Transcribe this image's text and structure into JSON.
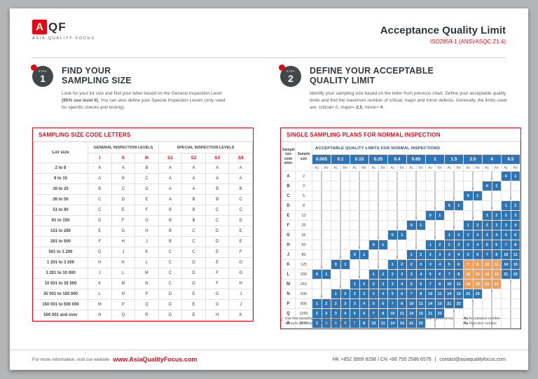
{
  "theme": {
    "accent_red": "#e30613",
    "accent_blue": "#2e75b6",
    "highlight_orange": "#f0a05a",
    "banner_blue": "#1f4e79"
  },
  "header": {
    "logo": {
      "mark": "A",
      "suffix": "QF",
      "tagline": "ASIA·QUALITY·FOCUS"
    },
    "title": "Acceptance Quality Limit",
    "subtitle": "ISO2859-1 (ANSI/ASQC Z1.4)"
  },
  "step1": {
    "step_word": "STEP",
    "number": "1",
    "title_line1": "FIND YOUR",
    "title_line2": "SAMPLING SIZE",
    "description": [
      {
        "t": "Look for your lot size and find your letter based on the General Inspection Level ",
        "b": false
      },
      {
        "t": "(95% use level II)",
        "b": true
      },
      {
        "t": ". You can also define your Special Inspection Levels (only used for specific checks and testing).",
        "b": false
      }
    ]
  },
  "step2": {
    "step_word": "STEP",
    "number": "2",
    "title_line1": "DEFINE YOUR ACCEPTABLE",
    "title_line2": "QUALITY LIMIT",
    "description": [
      {
        "t": "Identify your sampling size based on the letter from previous chart. Define your acceptable quality limits and find the maximum number of critical, major and minor defects. Generally, the limits used are: critical= 0, major= ",
        "b": false
      },
      {
        "t": "2.5",
        "b": true
      },
      {
        "t": ", minor= ",
        "b": false
      },
      {
        "t": "4",
        "b": true
      },
      {
        "t": ".",
        "b": false
      }
    ]
  },
  "code_letters_table": {
    "title": "SAMPLING SIZE CODE LETTERS",
    "lot_size_header": "Lot size",
    "col_group1": "GENERAL INSPECTION LEVELS",
    "col_group2": "SPECIAL INSPECTION LEVELS",
    "general_levels": [
      "I",
      "II",
      "III"
    ],
    "special_levels": [
      "S1",
      "S2",
      "S3",
      "S4"
    ],
    "rows": [
      {
        "lot": "2 to 8",
        "g": [
          "A",
          "A",
          "B"
        ],
        "s": [
          "A",
          "A",
          "A",
          "A"
        ]
      },
      {
        "lot": "9 to 15",
        "g": [
          "A",
          "B",
          "C"
        ],
        "s": [
          "A",
          "A",
          "A",
          "A"
        ]
      },
      {
        "lot": "16 to 25",
        "g": [
          "B",
          "C",
          "D"
        ],
        "s": [
          "A",
          "A",
          "B",
          "B"
        ]
      },
      {
        "lot": "26 to 50",
        "g": [
          "C",
          "D",
          "E"
        ],
        "s": [
          "A",
          "B",
          "B",
          "C"
        ]
      },
      {
        "lot": "51 to 90",
        "g": [
          "C",
          "E",
          "F"
        ],
        "s": [
          "B",
          "B",
          "C",
          "C"
        ]
      },
      {
        "lot": "91 to 150",
        "g": [
          "D",
          "F",
          "G"
        ],
        "s": [
          "B",
          "B",
          "C",
          "D"
        ]
      },
      {
        "lot": "151 to 280",
        "g": [
          "E",
          "G",
          "H"
        ],
        "s": [
          "B",
          "C",
          "D",
          "E"
        ]
      },
      {
        "lot": "281 to 500",
        "g": [
          "F",
          "H",
          "J"
        ],
        "s": [
          "B",
          "C",
          "D",
          "E"
        ]
      },
      {
        "lot": "501 to 1 200",
        "g": [
          "G",
          "J",
          "K"
        ],
        "s": [
          "C",
          "C",
          "E",
          "F"
        ]
      },
      {
        "lot": "1 201 to 3 200",
        "g": [
          "H",
          "K",
          "L"
        ],
        "s": [
          "C",
          "D",
          "E",
          "G"
        ]
      },
      {
        "lot": "3 201 to 10 000",
        "g": [
          "J",
          "L",
          "M"
        ],
        "s": [
          "C",
          "D",
          "F",
          "G"
        ]
      },
      {
        "lot": "10 001 to 35 000",
        "g": [
          "K",
          "M",
          "N"
        ],
        "s": [
          "C",
          "D",
          "F",
          "H"
        ]
      },
      {
        "lot": "35 001 to 150 000",
        "g": [
          "L",
          "N",
          "P"
        ],
        "s": [
          "D",
          "E",
          "G",
          "J"
        ]
      },
      {
        "lot": "150 001 to 500 000",
        "g": [
          "M",
          "P",
          "Q"
        ],
        "s": [
          "D",
          "E",
          "G",
          "J"
        ]
      },
      {
        "lot": "500 001 and over",
        "g": [
          "N",
          "Q",
          "R"
        ],
        "s": [
          "D",
          "E",
          "H",
          "K"
        ]
      }
    ]
  },
  "aql_table": {
    "title": "SINGLE SAMPLING PLANS FOR NORMAL INSPECTION",
    "header_banner": "ACCEPTABLE QUALITY LIMITS FOR NORMAL INSPECTIONS",
    "code_letter_header": "Sample size code letter",
    "sample_size_header": "Sample size",
    "ac_label": "Ac",
    "re_label": "Re",
    "aql_values": [
      "0.065",
      "0.1",
      "0.15",
      "0.25",
      "0.4",
      "0.65",
      "1",
      "1.5",
      "2.5",
      "4",
      "6.5"
    ],
    "rows": [
      {
        "letter": "A",
        "size": "2",
        "cells": [
          "d",
          "d",
          "d",
          "d",
          "d",
          "d",
          "d",
          "d",
          "d",
          "d",
          "0|1"
        ]
      },
      {
        "letter": "B",
        "size": "3",
        "cells": [
          "d",
          "d",
          "d",
          "d",
          "d",
          "d",
          "d",
          "d",
          "d",
          "0|1",
          "d"
        ]
      },
      {
        "letter": "C",
        "size": "5",
        "cells": [
          "d",
          "d",
          "d",
          "d",
          "d",
          "d",
          "d",
          "d",
          "0|1",
          "d",
          "d"
        ]
      },
      {
        "letter": "D",
        "size": "8",
        "cells": [
          "d",
          "d",
          "d",
          "d",
          "d",
          "d",
          "d",
          "0|1",
          "d",
          "d",
          "1|2"
        ]
      },
      {
        "letter": "E",
        "size": "13",
        "cells": [
          "d",
          "d",
          "d",
          "d",
          "d",
          "d",
          "0|1",
          "d",
          "d",
          "1|2",
          "2|3"
        ]
      },
      {
        "letter": "F",
        "size": "20",
        "cells": [
          "d",
          "d",
          "d",
          "d",
          "d",
          "0|1",
          "d",
          "d",
          "1|2",
          "2|3",
          "3|4"
        ]
      },
      {
        "letter": "G",
        "size": "32",
        "cells": [
          "d",
          "d",
          "d",
          "d",
          "0|1",
          "d",
          "d",
          "1|2",
          "2|3",
          "3|4",
          "5|6"
        ]
      },
      {
        "letter": "H",
        "size": "50",
        "cells": [
          "d",
          "d",
          "d",
          "0|1",
          "d",
          "d",
          "1|2",
          "2|3",
          "3|4",
          "5|6",
          "7|8"
        ]
      },
      {
        "letter": "J",
        "size": "80",
        "cells": [
          "d",
          "d",
          "0|1",
          "d",
          "d",
          "1|2",
          "2|3",
          "3|4",
          "5|6",
          "7|8",
          "10|11"
        ]
      },
      {
        "letter": "K",
        "size": "125",
        "cells": [
          "d",
          "0|1",
          "d",
          "d",
          "1|2",
          "2|3",
          "3|4",
          "5|6",
          "h7|8",
          "h10|11",
          "14|15"
        ]
      },
      {
        "letter": "L",
        "size": "200",
        "cells": [
          "0|1",
          "d",
          "d",
          "1|2",
          "2|3",
          "3|4",
          "5|6",
          "7|8",
          "h10|11",
          "h14|15",
          "21|22"
        ]
      },
      {
        "letter": "M",
        "size": "315",
        "cells": [
          "d",
          "d",
          "1|2",
          "2|3",
          "3|4",
          "5|6",
          "7|8",
          "10|11",
          "h14|15",
          "h21|22",
          "u"
        ]
      },
      {
        "letter": "N",
        "size": "500",
        "cells": [
          "d",
          "1|2",
          "2|3",
          "3|4",
          "5|6",
          "7|8",
          "10|11",
          "14|15",
          "21|22",
          "u",
          "u"
        ]
      },
      {
        "letter": "P",
        "size": "800",
        "cells": [
          "1|2",
          "2|3",
          "3|4",
          "5|6",
          "7|8",
          "10|11",
          "14|15",
          "21|22",
          "u",
          "u",
          "u"
        ]
      },
      {
        "letter": "Q",
        "size": "1250",
        "cells": [
          "2|3",
          "3|4",
          "5|6",
          "7|8",
          "10|11",
          "14|15",
          "21|22",
          "u",
          "u",
          "u",
          "u"
        ]
      },
      {
        "letter": "R",
        "size": "2000",
        "cells": [
          "3|4",
          "5|6",
          "7|8",
          "10|11",
          "14|15",
          "21|22",
          "u",
          "u",
          "u",
          "u",
          "u"
        ]
      }
    ]
  },
  "legend": {
    "down_symbol": "↓",
    "down_text": "Use first sampling plan below arrow. If sample size equals, or exceeds lot or batch size, do 100% inspection.",
    "up_symbol": "↑",
    "up_text": "Use first sampling plan above arrow.",
    "ac_symbol": "Ac",
    "ac_label": "Acceptance number",
    "re_symbol": "Re",
    "re_label": "Rejection number"
  },
  "footer": {
    "info_text": "For more information, visit our website",
    "website": "www.AsiaQualityFocus.com",
    "contacts": "HK +852 3909 8298  /  CN +86 755 2586 6576",
    "separator": "|",
    "email": "contact@asiaqualityfocus.com"
  }
}
